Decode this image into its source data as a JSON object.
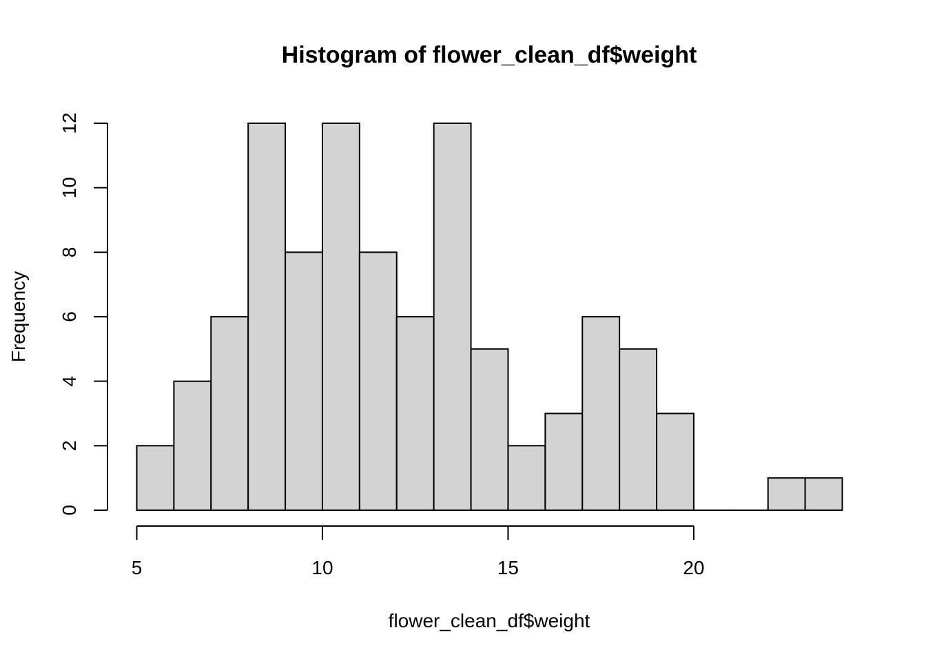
{
  "chart_data": {
    "type": "bar",
    "subtype": "histogram",
    "title": "Histogram of flower_clean_df$weight",
    "xlabel": "flower_clean_df$weight",
    "ylabel": "Frequency",
    "bins": [
      {
        "start": 5,
        "end": 6,
        "count": 2
      },
      {
        "start": 6,
        "end": 7,
        "count": 4
      },
      {
        "start": 7,
        "end": 8,
        "count": 6
      },
      {
        "start": 8,
        "end": 9,
        "count": 12
      },
      {
        "start": 9,
        "end": 10,
        "count": 8
      },
      {
        "start": 10,
        "end": 11,
        "count": 12
      },
      {
        "start": 11,
        "end": 12,
        "count": 8
      },
      {
        "start": 12,
        "end": 13,
        "count": 6
      },
      {
        "start": 13,
        "end": 14,
        "count": 12
      },
      {
        "start": 14,
        "end": 15,
        "count": 5
      },
      {
        "start": 15,
        "end": 16,
        "count": 2
      },
      {
        "start": 16,
        "end": 17,
        "count": 3
      },
      {
        "start": 17,
        "end": 18,
        "count": 6
      },
      {
        "start": 18,
        "end": 19,
        "count": 5
      },
      {
        "start": 19,
        "end": 20,
        "count": 3
      },
      {
        "start": 20,
        "end": 21,
        "count": 0
      },
      {
        "start": 21,
        "end": 22,
        "count": 0
      },
      {
        "start": 22,
        "end": 23,
        "count": 1
      },
      {
        "start": 23,
        "end": 24,
        "count": 1
      }
    ],
    "xlim": [
      5,
      24
    ],
    "ylim": [
      0,
      12
    ],
    "x_ticks": [
      5,
      10,
      15,
      20
    ],
    "y_ticks": [
      0,
      2,
      4,
      6,
      8,
      10,
      12
    ],
    "bar_color": "#d3d3d3",
    "bar_border_color": "#000000",
    "grid": false
  }
}
